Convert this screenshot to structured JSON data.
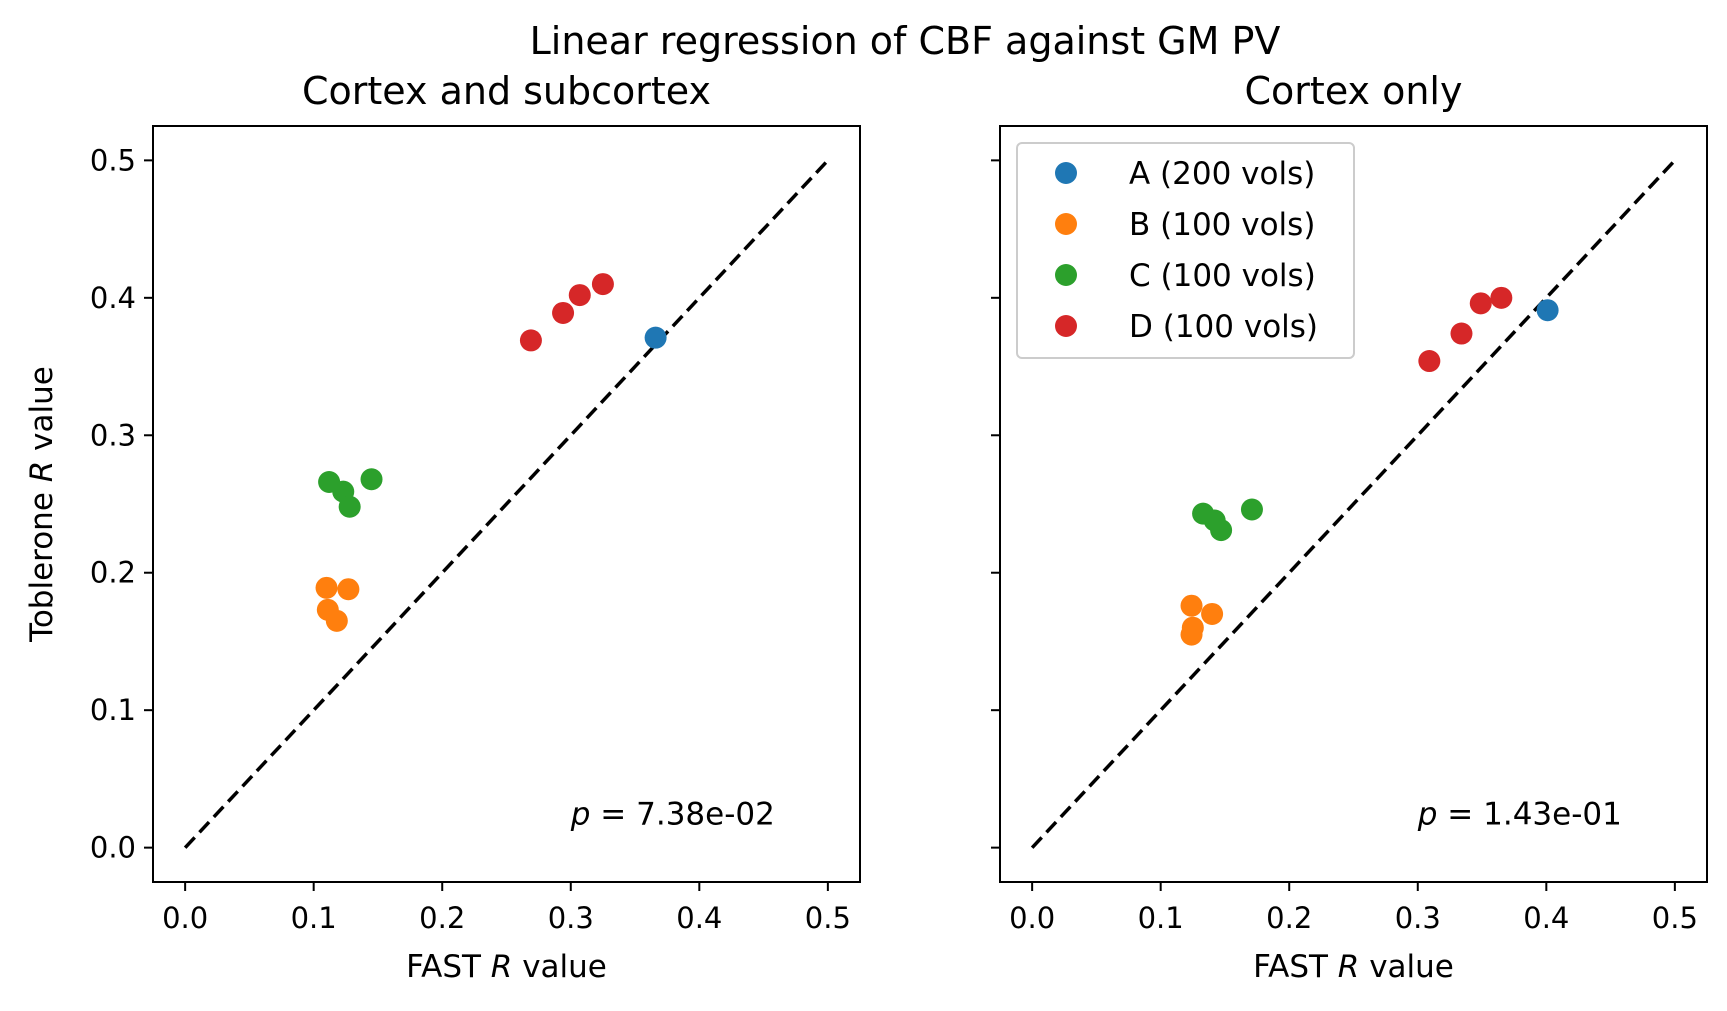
{
  "chart_data": {
    "type": "scatter",
    "title": "Linear regression of CBF against GM PV",
    "legend": {
      "placement": "top-left of right panel",
      "entries": [
        {
          "label": "A (200 vols)",
          "color": "#1f77b4"
        },
        {
          "label": "B (100 vols)",
          "color": "#ff7f0e"
        },
        {
          "label": "C (100 vols)",
          "color": "#2ca02c"
        },
        {
          "label": "D (100 vols)",
          "color": "#d62728"
        }
      ]
    },
    "x_tick_labels": [
      "0.0",
      "0.1",
      "0.2",
      "0.3",
      "0.4",
      "0.5"
    ],
    "y_tick_labels": [
      "0.0",
      "0.1",
      "0.2",
      "0.3",
      "0.4",
      "0.5"
    ],
    "reference_line": {
      "from": [
        0,
        0
      ],
      "to": [
        0.5,
        0.5
      ],
      "style": "dashed",
      "color": "#000000"
    },
    "panels": [
      {
        "title": "Cortex and subcortex",
        "xlabel_prefix": "FAST ",
        "xlabel_italic": "R",
        "xlabel_suffix": " value",
        "ylabel_prefix": "Toblerone ",
        "ylabel_italic": "R",
        "ylabel_suffix": " value",
        "xlim": [
          -0.025,
          0.525
        ],
        "ylim": [
          -0.025,
          0.525
        ],
        "p_label": "p",
        "p_value": " = 7.38e-02",
        "series": [
          {
            "name": "A (200 vols)",
            "color": "#1f77b4",
            "points": [
              [
                0.366,
                0.371
              ]
            ]
          },
          {
            "name": "B (100 vols)",
            "color": "#ff7f0e",
            "points": [
              [
                0.11,
                0.189
              ],
              [
                0.127,
                0.188
              ],
              [
                0.111,
                0.173
              ],
              [
                0.118,
                0.165
              ]
            ]
          },
          {
            "name": "C (100 vols)",
            "color": "#2ca02c",
            "points": [
              [
                0.112,
                0.266
              ],
              [
                0.123,
                0.259
              ],
              [
                0.145,
                0.268
              ],
              [
                0.128,
                0.248
              ]
            ]
          },
          {
            "name": "D (100 vols)",
            "color": "#d62728",
            "points": [
              [
                0.269,
                0.369
              ],
              [
                0.294,
                0.389
              ],
              [
                0.307,
                0.402
              ],
              [
                0.325,
                0.41
              ]
            ]
          }
        ]
      },
      {
        "title": "Cortex only",
        "xlabel_prefix": "FAST ",
        "xlabel_italic": "R",
        "xlabel_suffix": " value",
        "ylabel_prefix": "",
        "ylabel_italic": "",
        "ylabel_suffix": "",
        "xlim": [
          -0.025,
          0.525
        ],
        "ylim": [
          -0.025,
          0.525
        ],
        "p_label": "p",
        "p_value": " = 1.43e-01",
        "series": [
          {
            "name": "A (200 vols)",
            "color": "#1f77b4",
            "points": [
              [
                0.401,
                0.391
              ]
            ]
          },
          {
            "name": "B (100 vols)",
            "color": "#ff7f0e",
            "points": [
              [
                0.124,
                0.176
              ],
              [
                0.14,
                0.17
              ],
              [
                0.125,
                0.16
              ],
              [
                0.124,
                0.155
              ]
            ]
          },
          {
            "name": "C (100 vols)",
            "color": "#2ca02c",
            "points": [
              [
                0.133,
                0.243
              ],
              [
                0.142,
                0.238
              ],
              [
                0.147,
                0.231
              ],
              [
                0.171,
                0.246
              ]
            ]
          },
          {
            "name": "D (100 vols)",
            "color": "#d62728",
            "points": [
              [
                0.309,
                0.354
              ],
              [
                0.334,
                0.374
              ],
              [
                0.349,
                0.396
              ],
              [
                0.365,
                0.4
              ]
            ]
          }
        ]
      }
    ]
  }
}
